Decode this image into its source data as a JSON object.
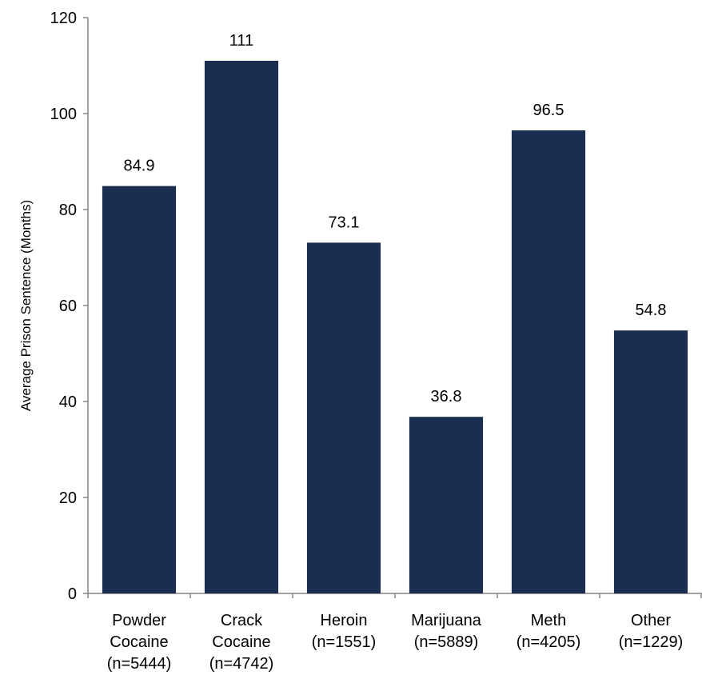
{
  "chart_data": {
    "type": "bar",
    "title": "",
    "xlabel": "",
    "ylabel": "Average Prison Sentence (Months)",
    "ylim": [
      0,
      120
    ],
    "yticks": [
      0,
      20,
      40,
      60,
      80,
      100,
      120
    ],
    "grid": false,
    "legend": "none",
    "bar_color": "#1a2f50",
    "categories": [
      [
        "Powder",
        "Cocaine",
        "(n=5444)"
      ],
      [
        "Crack",
        "Cocaine",
        "(n=4742)"
      ],
      [
        "Heroin",
        "(n=1551)"
      ],
      [
        "Marijuana",
        "(n=5889)"
      ],
      [
        "Meth",
        "(n=4205)"
      ],
      [
        "Other",
        "(n=1229)"
      ]
    ],
    "values": [
      84.9,
      111,
      73.1,
      36.8,
      96.5,
      54.8
    ],
    "data_labels": [
      "84.9",
      "111",
      "73.1",
      "36.8",
      "96.5",
      "54.8"
    ]
  }
}
